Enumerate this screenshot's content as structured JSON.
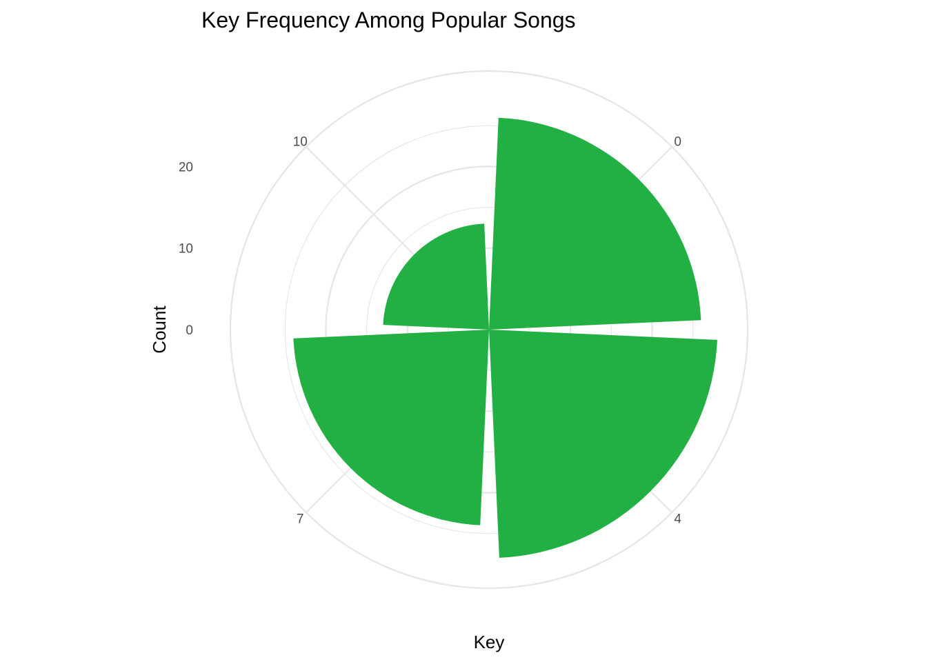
{
  "chart_data": {
    "type": "bar",
    "coord": "polar",
    "title": "Key Frequency Among Popular Songs",
    "xlabel": "Key",
    "ylabel": "Count",
    "categories": [
      "0",
      "4",
      "7",
      "10"
    ],
    "values": [
      26,
      28,
      24,
      13
    ],
    "ylim": [
      0,
      31.7
    ],
    "radial_ticks": [
      "0",
      "10",
      "20"
    ],
    "radial_tick_values": [
      0,
      10,
      20
    ],
    "grid": true,
    "legend": "none",
    "colors": {
      "bar": "#22b044",
      "grid": "#e5e5e5",
      "text": "#000000",
      "tick_text": "#4d4d4d"
    }
  }
}
